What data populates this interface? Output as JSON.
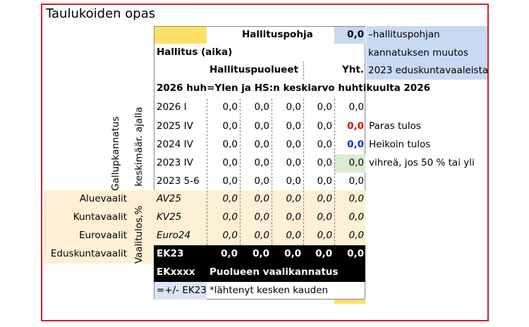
{
  "title": "Taulukoiden opas",
  "header": {
    "hallituspohja": "Hallituspohja",
    "total": "0,0",
    "hallitus": "Hallitus (aika)",
    "puolueet": "Hallituspuolueet",
    "yht": "Yht.",
    "source": "2026 huh=Ylen ja HS:n keskiarvo huhtikuulta 2026"
  },
  "note": [
    "–hallituspohjan",
    "kannatuksen muutos",
    "2023 eduskuntavaaleista"
  ],
  "side_labels": {
    "gallup": "Gallupkannatus",
    "avg": "keskimäär. ajalla",
    "vaali": "Vaalitulos,%"
  },
  "gallup_rows": [
    {
      "label": "2026 I",
      "values": [
        "0,0",
        "0,0",
        "0,0",
        "0,0",
        "0,0"
      ]
    },
    {
      "label": "2025 IV",
      "values": [
        "0,0",
        "0,0",
        "0,0",
        "0,0",
        "0,0"
      ],
      "comment": "Paras tulos"
    },
    {
      "label": "2024 IV",
      "values": [
        "0,0",
        "0,0",
        "0,0",
        "0,0",
        "0,0"
      ],
      "comment": "Heikoin tulos"
    },
    {
      "label": "2023 IV",
      "values": [
        "0,0",
        "0,0",
        "0,0",
        "0,0",
        "0,0"
      ],
      "comment": "vihreä, jos 50 % tai yli"
    },
    {
      "label": "2023 5-6",
      "values": [
        "0,0",
        "0,0",
        "0,0",
        "0,0",
        "0,0"
      ]
    }
  ],
  "election_rows": [
    {
      "name": "Aluevaalit",
      "label": "AV25",
      "values": [
        "0,0",
        "0,0",
        "0,0",
        "0,0",
        "0,0"
      ]
    },
    {
      "name": "Kuntavaalit",
      "label": "KV25",
      "values": [
        "0,0",
        "0,0",
        "0,0",
        "0,0",
        "0,0"
      ]
    },
    {
      "name": "Eurovaalit",
      "label": "Euro24",
      "values": [
        "0,0",
        "0,0",
        "0,0",
        "0,0",
        "0,0"
      ]
    },
    {
      "name": "Eduskuntavaalit",
      "label": "EK23",
      "values": [
        "0,0",
        "0,0",
        "0,0",
        "0,0",
        "0,0"
      ]
    }
  ],
  "footer": {
    "ekxxxx": "EKxxxx",
    "party": "Puolueen vaalikannatus",
    "diff": "=+/- EK23",
    "note": "*lähtenyt kesken kauden"
  }
}
